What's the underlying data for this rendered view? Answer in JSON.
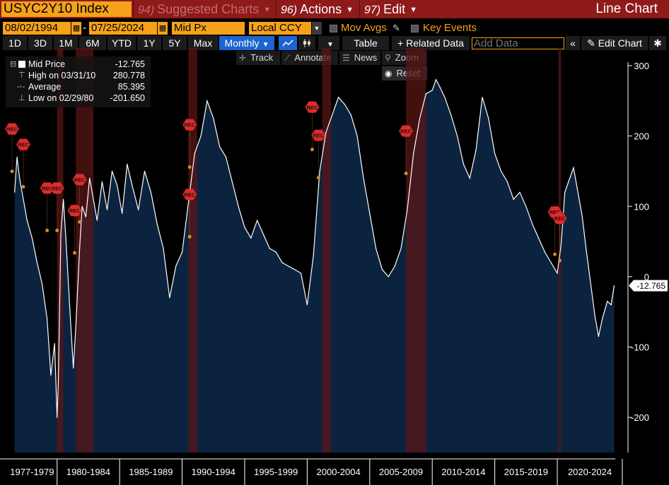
{
  "header": {
    "ticker": "USYC2Y10 Index",
    "menu": [
      {
        "num": "94)",
        "label": "Suggested Charts",
        "dim": true
      },
      {
        "num": "96)",
        "label": "Actions",
        "dim": false
      },
      {
        "num": "97)",
        "label": "Edit",
        "dim": false
      }
    ],
    "chart_title": "Line Chart"
  },
  "controls": {
    "start_date": "08/02/1994",
    "end_date": "07/25/2024",
    "price_field": "Mid Px",
    "currency": "Local CCY",
    "mov_avgs": "Mov Avgs",
    "key_events": "Key Events"
  },
  "ranges": [
    "1D",
    "3D",
    "1M",
    "6M",
    "YTD",
    "1Y",
    "5Y",
    "Max"
  ],
  "periodicity": "Monthly",
  "toolbar": {
    "table": "Table",
    "related": "+ Related Data",
    "add_data_placeholder": "Add Data",
    "edit_chart": "Edit Chart"
  },
  "tools": {
    "track": "Track",
    "annotate": "Annotate",
    "news": "News",
    "zoom": "Zoom",
    "reset": "Reset"
  },
  "legend": {
    "mid_price_label": "Mid Price",
    "mid_price_value": "-12.765",
    "high_label": "High on 03/31/10",
    "high_value": "280.778",
    "avg_label": "Average",
    "avg_value": "85.395",
    "low_label": "Low on 02/29/80",
    "low_value": "-201.650"
  },
  "colors": {
    "area_fill": "#0c2340",
    "line": "#ffffff",
    "recession": "#5a1515",
    "rec_marker": "#e02b2b",
    "accent": "#f5a11a",
    "topbar": "#8e1a1a"
  },
  "chart_data": {
    "type": "area",
    "title": "",
    "xlabel": "",
    "ylabel": "",
    "ylim": [
      -250,
      305
    ],
    "xlim": [
      1976.0,
      2025.2
    ],
    "yticks": [
      300,
      200,
      100,
      0,
      -100,
      -200
    ],
    "last_value": -12.765,
    "last_value_label": "-12.765",
    "x_groups": [
      "1977-1979",
      "1980-1984",
      "1985-1989",
      "1990-1994",
      "1995-1999",
      "2000-2004",
      "2005-2009",
      "2010-2014",
      "2015-2019",
      "2020-2024"
    ],
    "recessions": [
      [
        1980.0,
        1980.5
      ],
      [
        1981.5,
        1982.9
      ],
      [
        1990.5,
        1991.2
      ],
      [
        2001.2,
        2001.9
      ],
      [
        2007.9,
        2009.5
      ],
      [
        2020.1,
        2020.3
      ]
    ],
    "rec_label": "REC",
    "rec_markers": [
      {
        "x": 1976.4,
        "y": 210
      },
      {
        "x": 1977.3,
        "y": 188
      },
      {
        "x": 1979.2,
        "y": 126
      },
      {
        "x": 1980.0,
        "y": 126
      },
      {
        "x": 1981.8,
        "y": 138
      },
      {
        "x": 1981.4,
        "y": 94
      },
      {
        "x": 1990.6,
        "y": 216
      },
      {
        "x": 1990.6,
        "y": 117
      },
      {
        "x": 2000.4,
        "y": 241
      },
      {
        "x": 2000.9,
        "y": 201
      },
      {
        "x": 2007.9,
        "y": 207
      },
      {
        "x": 2019.8,
        "y": 92
      },
      {
        "x": 2020.2,
        "y": 83
      }
    ],
    "series": [
      {
        "x": [
          1976.6,
          1976.8,
          1977.0,
          1977.3,
          1977.6,
          1978.0,
          1978.4,
          1978.8,
          1979.2,
          1979.5,
          1979.8,
          1980.0,
          1980.1,
          1980.3,
          1980.5,
          1980.7,
          1981.0,
          1981.3,
          1981.5,
          1981.8,
          1982.0,
          1982.3,
          1982.6,
          1982.9,
          1983.2,
          1983.6,
          1984.0,
          1984.4,
          1984.8,
          1985.2,
          1985.6,
          1986.0,
          1986.5,
          1987.0,
          1987.5,
          1988.0,
          1988.5,
          1989.0,
          1989.5,
          1990.0,
          1990.5,
          1991.0,
          1991.5,
          1992.0,
          1992.5,
          1993.0,
          1993.5,
          1994.0,
          1994.5,
          1995.0,
          1995.5,
          1996.0,
          1996.5,
          1997.0,
          1997.5,
          1998.0,
          1998.5,
          1999.0,
          1999.5,
          2000.0,
          2000.5,
          2001.0,
          2001.5,
          2002.0,
          2002.5,
          2003.0,
          2003.5,
          2004.0,
          2004.5,
          2005.0,
          2005.5,
          2006.0,
          2006.5,
          2007.0,
          2007.5,
          2008.0,
          2008.5,
          2009.0,
          2009.5,
          2010.0,
          2010.3,
          2010.6,
          2011.0,
          2011.5,
          2012.0,
          2012.5,
          2013.0,
          2013.5,
          2014.0,
          2014.5,
          2015.0,
          2015.5,
          2016.0,
          2016.5,
          2017.0,
          2017.5,
          2018.0,
          2018.5,
          2019.0,
          2019.5,
          2020.0,
          2020.3,
          2020.6,
          2021.0,
          2021.3,
          2021.6,
          2022.0,
          2022.3,
          2022.6,
          2023.0,
          2023.3,
          2023.6,
          2024.0,
          2024.3,
          2024.55
        ],
        "values": [
          120,
          170,
          140,
          110,
          80,
          55,
          20,
          -10,
          -60,
          -140,
          -95,
          -200,
          -150,
          60,
          110,
          55,
          -40,
          -130,
          -70,
          40,
          100,
          85,
          140,
          110,
          80,
          135,
          95,
          150,
          130,
          90,
          160,
          130,
          95,
          150,
          120,
          75,
          40,
          -30,
          15,
          35,
          105,
          175,
          200,
          250,
          225,
          185,
          170,
          135,
          100,
          70,
          55,
          80,
          60,
          40,
          35,
          20,
          15,
          10,
          5,
          -40,
          30,
          150,
          205,
          230,
          255,
          245,
          230,
          200,
          140,
          90,
          40,
          10,
          0,
          15,
          40,
          95,
          175,
          225,
          260,
          265,
          280,
          270,
          255,
          230,
          200,
          160,
          140,
          180,
          255,
          225,
          175,
          150,
          135,
          110,
          120,
          100,
          75,
          55,
          35,
          20,
          5,
          45,
          120,
          140,
          155,
          125,
          85,
          40,
          0,
          -55,
          -85,
          -60,
          -35,
          -40,
          -12.765
        ]
      }
    ]
  }
}
